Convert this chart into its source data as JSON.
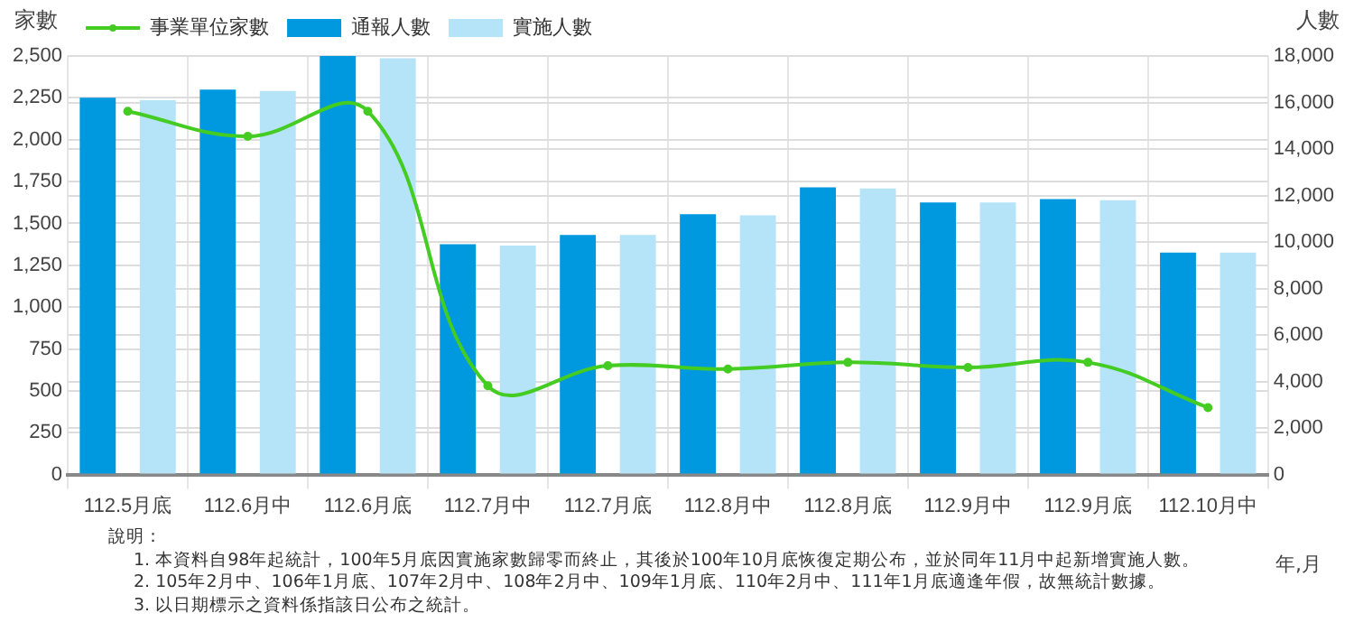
{
  "chart_data": {
    "type": "bar",
    "ylabel": "家數",
    "y2label": "人數",
    "xlabel": "年,月",
    "categories": [
      "112.5月底",
      "112.6月中",
      "112.6月底",
      "112.7月中",
      "112.7月底",
      "112.8月中",
      "112.8月底",
      "112.9月中",
      "112.9月底",
      "112.10月中"
    ],
    "series": [
      {
        "name": "事業單位家數",
        "type": "line",
        "color": "#44cc22",
        "values": [
          2170,
          2020,
          2170,
          530,
          650,
          630,
          670,
          640,
          670,
          400
        ]
      },
      {
        "name": "通報人數",
        "color": "#0099e0",
        "axis": "y2",
        "values": [
          16200,
          16550,
          18000,
          9900,
          10300,
          11200,
          12350,
          11700,
          11850,
          9550
        ]
      },
      {
        "name": "實施人數",
        "color": "#b5e3f8",
        "axis": "y2",
        "values": [
          16100,
          16500,
          17900,
          9850,
          10300,
          11150,
          12300,
          11700,
          11800,
          9550
        ]
      }
    ],
    "ylim": [
      0,
      2500
    ],
    "yticks": [
      0,
      {
        "value": 250,
        "label": "250"
      },
      {
        "value": 500,
        "label": "500"
      },
      {
        "value": 750,
        "label": "750"
      },
      {
        "value": 1000,
        "label": "1,000"
      },
      {
        "value": 1250,
        "label": "1,250"
      },
      {
        "value": 1500,
        "label": "1,500"
      },
      {
        "value": 1750,
        "label": "1,750"
      },
      {
        "value": 2000,
        "label": "2,000"
      },
      {
        "value": 2250,
        "label": "2,250"
      },
      {
        "value": 2500,
        "label": "2,500"
      }
    ],
    "y2lim": [
      0,
      18000
    ],
    "y2ticks": [
      0,
      {
        "value": 2000,
        "label": "2,000"
      },
      {
        "value": 4000,
        "label": "4,000"
      },
      {
        "value": 6000,
        "label": "6,000"
      },
      {
        "value": 8000,
        "label": "8,000"
      },
      {
        "value": 10000,
        "label": "10,000"
      },
      {
        "value": 12000,
        "label": "12,000"
      },
      {
        "value": 14000,
        "label": "14,000"
      },
      {
        "value": 16000,
        "label": "16,000"
      },
      {
        "value": 18000,
        "label": "18,000"
      }
    ],
    "grid": true,
    "legend": "top left",
    "marker": "circle",
    "line_style": "solid",
    "annotations": [
      "說明：",
      "1. 本資料自98年起統計，100年5月底因實施家數歸零而終止，其後於100年10月底恢復定期公布，並於同年11月中起新增實施人數。",
      "2. 105年2月中、106年1月底、107年2月中、108年2月中、109年1月底、110年2月中、111年1月底適逢年假，故無統計數據。",
      "3. 以日期標示之資料係指該日公布之統計。"
    ]
  }
}
